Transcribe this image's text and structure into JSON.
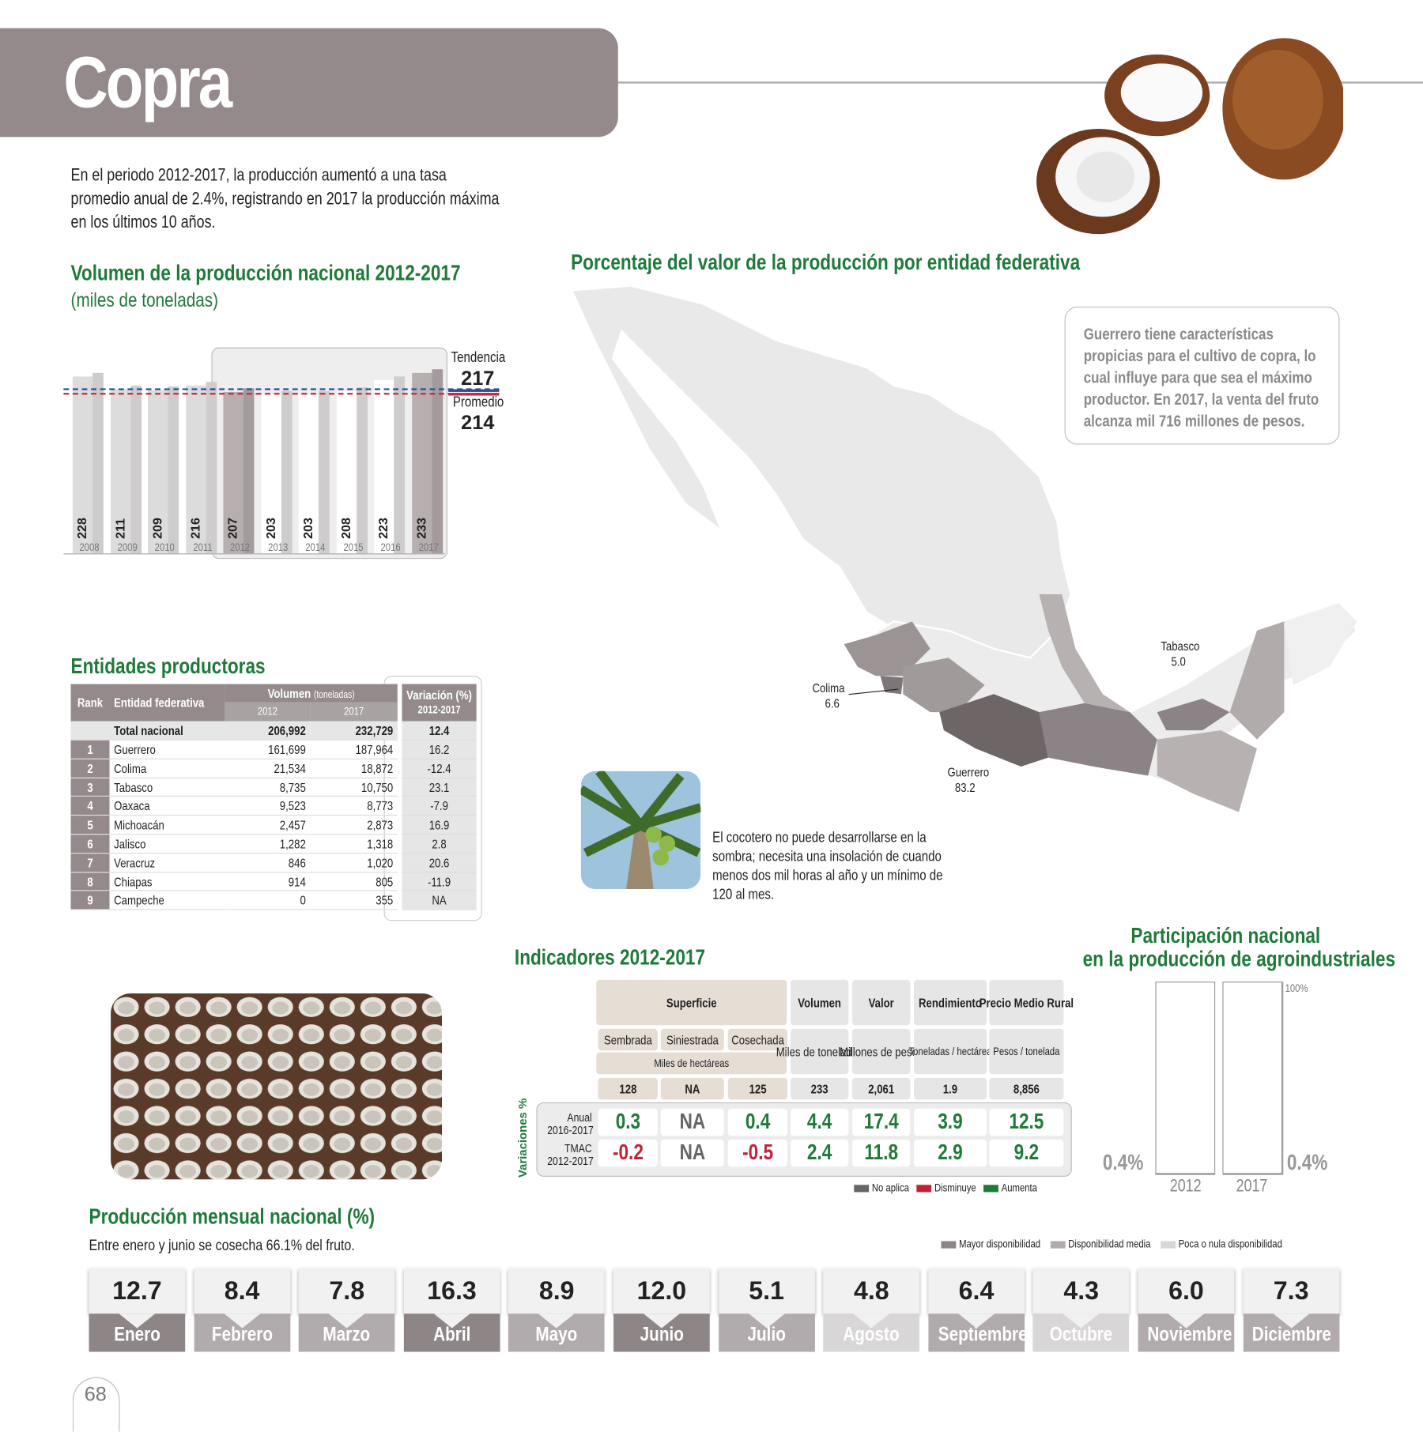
{
  "header": {
    "title": "Copra"
  },
  "intro": "En el periodo 2012-2017, la producción aumentó a una tasa promedio anual de 2.4%, registrando en 2017 la producción máxima en los últimos 10 años.",
  "volume_chart": {
    "title": "Volumen de la producción nacional 2012-2017",
    "subtitle": "(miles de toneladas)",
    "chart_data": {
      "type": "bar",
      "categories": [
        "2008",
        "2009",
        "2010",
        "2011",
        "2012",
        "2013",
        "2014",
        "2015",
        "2016",
        "2017"
      ],
      "values": [
        228,
        211,
        209,
        216,
        207,
        203,
        203,
        208,
        223,
        233
      ],
      "highlight_range": [
        "2012",
        "2017"
      ]
    },
    "tendencia_label": "Tendencia",
    "tendencia_value": "217",
    "promedio_label": "Promedio",
    "promedio_value": "214",
    "colors": {
      "tendencia": "#2e4f9a",
      "promedio": "#c8283a"
    }
  },
  "entities": {
    "title": "Entidades productoras",
    "headers": {
      "rank": "Rank",
      "entidad": "Entidad federativa",
      "volumen": "Volumen",
      "volumen_unit": "(toneladas)",
      "y2012": "2012",
      "y2017": "2017",
      "variacion": "Variación (%)",
      "variacion_period": "2012-2017"
    },
    "total": {
      "name": "Total nacional",
      "v2012": "206,992",
      "v2017": "232,729",
      "var": "12.4"
    },
    "rows": [
      {
        "rank": "1",
        "name": "Guerrero",
        "v2012": "161,699",
        "v2017": "187,964",
        "var": "16.2"
      },
      {
        "rank": "2",
        "name": "Colima",
        "v2012": "21,534",
        "v2017": "18,872",
        "var": "-12.4"
      },
      {
        "rank": "3",
        "name": "Tabasco",
        "v2012": "8,735",
        "v2017": "10,750",
        "var": "23.1"
      },
      {
        "rank": "4",
        "name": "Oaxaca",
        "v2012": "9,523",
        "v2017": "8,773",
        "var": "-7.9"
      },
      {
        "rank": "5",
        "name": "Michoacán",
        "v2012": "2,457",
        "v2017": "2,873",
        "var": "16.9"
      },
      {
        "rank": "6",
        "name": "Jalisco",
        "v2012": "1,282",
        "v2017": "1,318",
        "var": "2.8"
      },
      {
        "rank": "7",
        "name": "Veracruz",
        "v2012": "846",
        "v2017": "1,020",
        "var": "20.6"
      },
      {
        "rank": "8",
        "name": "Chiapas",
        "v2012": "914",
        "v2017": "805",
        "var": "-11.9"
      },
      {
        "rank": "9",
        "name": "Campeche",
        "v2012": "0",
        "v2017": "355",
        "var": "NA"
      }
    ]
  },
  "map": {
    "title": "Porcentaje del valor de la producción por entidad federativa",
    "callout": "Guerrero tiene características propicias para el cultivo de copra, lo cual influye para que sea el máximo productor. En 2017, la venta del fruto alcanza mil 716 millones de pesos.",
    "labels": [
      {
        "name": "Colima",
        "value": "6.6"
      },
      {
        "name": "Guerrero",
        "value": "83.2"
      },
      {
        "name": "Tabasco",
        "value": "5.0"
      }
    ],
    "palm_caption": "El cocotero no puede desarrollarse en la sombra; necesita una insolación de cuando menos dos mil horas al año y un mínimo de 120 al mes."
  },
  "indicators": {
    "title": "Indicadores 2012-2017",
    "superficie": "Superficie",
    "sembrada": "Sembrada",
    "siniestrada": "Siniestrada",
    "cosechada": "Cosechada",
    "miles_ha": "Miles de hectáreas",
    "volumen": "Volumen",
    "volumen_unit": "Miles de toneladas",
    "valor": "Valor",
    "valor_unit": "Millones de pesos",
    "rendimiento": "Rendimiento",
    "rendimiento_unit": "Toneladas / hectárea",
    "precio": "Precio Medio Rural",
    "precio_unit": "Pesos / tonelada",
    "values": [
      "128",
      "NA",
      "125",
      "233",
      "2,061",
      "1.9",
      "8,856"
    ],
    "variaciones_label": "Variaciones %",
    "anual_label": "Anual",
    "anual_period": "2016-2017",
    "anual": [
      "0.3",
      "NA",
      "0.4",
      "4.4",
      "17.4",
      "3.9",
      "12.5"
    ],
    "tmac_label": "TMAC",
    "tmac_period": "2012-2017",
    "tmac": [
      "-0.2",
      "NA",
      "-0.5",
      "2.4",
      "11.8",
      "2.9",
      "9.2"
    ],
    "legend": {
      "no_aplica": "No aplica",
      "disminuye": "Disminuye",
      "aumenta": "Aumenta"
    },
    "colors": {
      "no_aplica": "#666666",
      "disminuye": "#c0223a",
      "aumenta": "#1f7a3a"
    }
  },
  "participacion": {
    "title_line1": "Participación nacional",
    "title_line2": "en la producción de agroindustriales",
    "max_label": "100%",
    "years": [
      "2012",
      "2017"
    ],
    "values": [
      "0.4%",
      "0.4%"
    ]
  },
  "monthly": {
    "title": "Producción mensual nacional (%)",
    "subtitle": "Entre enero y junio se cosecha 66.1% del fruto.",
    "legend": {
      "mayor": "Mayor disponibilidad",
      "media": "Disponibilidad media",
      "poca": "Poca o nula disponibilidad"
    },
    "colors": {
      "mayor": "#8e8587",
      "media": "#b2abad",
      "poca": "#d9d6d7"
    },
    "months": [
      {
        "name": "Enero",
        "value": "12.7",
        "level": "mayor"
      },
      {
        "name": "Febrero",
        "value": "8.4",
        "level": "media"
      },
      {
        "name": "Marzo",
        "value": "7.8",
        "level": "media"
      },
      {
        "name": "Abril",
        "value": "16.3",
        "level": "mayor"
      },
      {
        "name": "Mayo",
        "value": "8.9",
        "level": "media"
      },
      {
        "name": "Junio",
        "value": "12.0",
        "level": "mayor"
      },
      {
        "name": "Julio",
        "value": "5.1",
        "level": "media"
      },
      {
        "name": "Agosto",
        "value": "4.8",
        "level": "poca"
      },
      {
        "name": "Septiembre",
        "value": "6.4",
        "level": "media"
      },
      {
        "name": "Octubre",
        "value": "4.3",
        "level": "poca"
      },
      {
        "name": "Noviembre",
        "value": "6.0",
        "level": "media"
      },
      {
        "name": "Diciembre",
        "value": "7.3",
        "level": "media"
      }
    ]
  },
  "page_number": "68"
}
